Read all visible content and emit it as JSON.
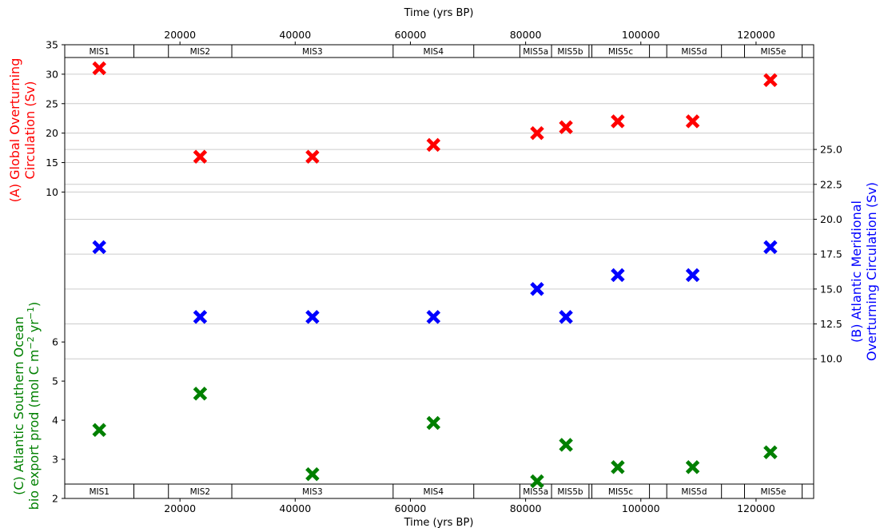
{
  "chart_data": {
    "type": "scatter",
    "title": "",
    "xlabel_top": "Time (yrs BP)",
    "xlabel_bottom": "Time (yrs BP)",
    "xlim": [
      0,
      130000
    ],
    "xticks": [
      20000,
      40000,
      60000,
      80000,
      100000,
      120000
    ],
    "mis_bands": [
      {
        "label": "MIS1",
        "start": 0,
        "end": 12000
      },
      {
        "label": "",
        "start": 12000,
        "end": 18000
      },
      {
        "label": "MIS2",
        "start": 18000,
        "end": 29000
      },
      {
        "label": "MIS3",
        "start": 29000,
        "end": 57000
      },
      {
        "label": "MIS4",
        "start": 57000,
        "end": 71000
      },
      {
        "label": "",
        "start": 71000,
        "end": 79000
      },
      {
        "label": "MIS5a",
        "start": 79000,
        "end": 84500
      },
      {
        "label": "MIS5b",
        "start": 84500,
        "end": 91000
      },
      {
        "label": "",
        "start": 91000,
        "end": 91500
      },
      {
        "label": "MIS5c",
        "start": 91500,
        "end": 101500
      },
      {
        "label": "",
        "start": 101500,
        "end": 104500
      },
      {
        "label": "MIS5d",
        "start": 104500,
        "end": 114000
      },
      {
        "label": "",
        "start": 114000,
        "end": 118000
      },
      {
        "label": "MIS5e",
        "start": 118000,
        "end": 128000
      },
      {
        "label": "",
        "start": 128000,
        "end": 130000
      }
    ],
    "x": [
      6000,
      23500,
      43000,
      64000,
      82000,
      87000,
      96000,
      109000,
      122500
    ],
    "series": [
      {
        "name": "(A) Global Overturning Circulation (Sv)",
        "axis": "A",
        "color": "#ff0000",
        "values": [
          31,
          16,
          16,
          18,
          20,
          21,
          22,
          22,
          29
        ]
      },
      {
        "name": "(B) Atlantic Meridional Overturning Circulation (Sv)",
        "axis": "B",
        "color": "#0000ff",
        "values": [
          18,
          13,
          13,
          13,
          15,
          13,
          16,
          16,
          18
        ]
      },
      {
        "name": "(C) Atlantic Southern Ocean bio export prod",
        "axis": "C",
        "color": "#008000",
        "values": [
          3.75,
          4.68,
          2.62,
          3.93,
          2.44,
          3.37,
          2.8,
          2.8,
          3.18
        ]
      }
    ],
    "axis_A": {
      "label_line1": "(A) Global Overturning",
      "label_line2": "Circulation (Sv)",
      "ylim": [
        -42,
        35
      ],
      "ticks": [
        "10",
        "15",
        "20",
        "25",
        "30",
        "35"
      ],
      "tick_values": [
        10,
        15,
        20,
        25,
        30,
        35
      ]
    },
    "axis_B": {
      "label_line1": "(B) Atlantic Meridional",
      "label_line2": "Overturning Circulation (Sv)",
      "ylim": [
        0,
        32.5
      ],
      "ticks": [
        "10.0",
        "12.5",
        "15.0",
        "17.5",
        "20.0",
        "22.5",
        "25.0"
      ],
      "tick_values": [
        10,
        12.5,
        15,
        17.5,
        20,
        22.5,
        25
      ]
    },
    "axis_C": {
      "label_line1": "(C) Atlantic Southern Ocean",
      "label_prefix": "bio export prod (mol C m",
      "label_sup1": "−2",
      "label_mid": " yr",
      "label_sup2": "−1",
      "label_suffix": ")",
      "ylim": [
        2,
        13.6
      ],
      "ticks": [
        "2",
        "3",
        "4",
        "5",
        "6"
      ],
      "tick_values": [
        2,
        3,
        4,
        5,
        6
      ]
    },
    "grid": true,
    "gridline_values_A": [
      10,
      15,
      20,
      25,
      30
    ],
    "gridline_values_B": [
      10,
      12.5,
      15,
      17.5,
      20,
      22.5,
      25
    ]
  }
}
